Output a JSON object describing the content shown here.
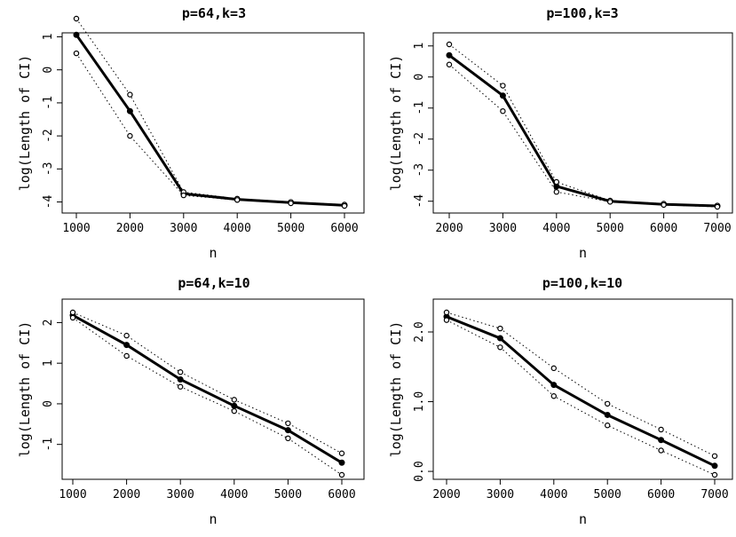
{
  "chart_data": [
    {
      "type": "line",
      "title": "p=64,k=3",
      "xlabel": "n",
      "ylabel": "log(Length of CI)",
      "x": [
        1000,
        2000,
        3000,
        4000,
        5000,
        6000
      ],
      "xticks": [
        "1000",
        "2000",
        "3000",
        "4000",
        "5000",
        "6000"
      ],
      "yticks": [
        "-4",
        "-3",
        "-2",
        "-1",
        "0",
        "1"
      ],
      "xlim": [
        1000,
        6000
      ],
      "ylim": [
        -4.12,
        1.55
      ],
      "series": [
        {
          "role": "mean",
          "values": [
            1.06,
            -1.25,
            -3.75,
            -3.92,
            -4.02,
            -4.1
          ]
        },
        {
          "role": "upper",
          "values": [
            1.55,
            -0.75,
            -3.7,
            -3.9,
            -4.0,
            -4.08
          ]
        },
        {
          "role": "lower",
          "values": [
            0.5,
            -2.0,
            -3.8,
            -3.94,
            -4.04,
            -4.12
          ]
        }
      ]
    },
    {
      "type": "line",
      "title": "p=100,k=3",
      "xlabel": "n",
      "ylabel": "log(Length of CI)",
      "x": [
        2000,
        3000,
        4000,
        5000,
        6000,
        7000
      ],
      "xticks": [
        "2000",
        "3000",
        "4000",
        "5000",
        "6000",
        "7000"
      ],
      "yticks": [
        "-4",
        "-3",
        "-2",
        "-1",
        "0",
        "1"
      ],
      "xlim": [
        2000,
        7000
      ],
      "ylim": [
        -4.18,
        1.05
      ],
      "series": [
        {
          "role": "mean",
          "values": [
            0.7,
            -0.6,
            -3.52,
            -4.0,
            -4.1,
            -4.15
          ]
        },
        {
          "role": "upper",
          "values": [
            1.05,
            -0.28,
            -3.38,
            -3.98,
            -4.08,
            -4.14
          ]
        },
        {
          "role": "lower",
          "values": [
            0.4,
            -1.1,
            -3.7,
            -4.02,
            -4.12,
            -4.18
          ]
        }
      ]
    },
    {
      "type": "line",
      "title": "p=64,k=10",
      "xlabel": "n",
      "ylabel": "log(Length of CI)",
      "x": [
        1000,
        2000,
        3000,
        4000,
        5000,
        6000
      ],
      "xticks": [
        "1000",
        "2000",
        "3000",
        "4000",
        "5000",
        "6000"
      ],
      "yticks": [
        "-1",
        "0",
        "1",
        "2"
      ],
      "xlim": [
        1000,
        6000
      ],
      "ylim": [
        -1.75,
        2.25
      ],
      "series": [
        {
          "role": "mean",
          "values": [
            2.18,
            1.45,
            0.6,
            -0.05,
            -0.65,
            -1.45
          ]
        },
        {
          "role": "upper",
          "values": [
            2.25,
            1.68,
            0.78,
            0.1,
            -0.48,
            -1.22
          ]
        },
        {
          "role": "lower",
          "values": [
            2.12,
            1.18,
            0.42,
            -0.18,
            -0.85,
            -1.75
          ]
        }
      ]
    },
    {
      "type": "line",
      "title": "p=100,k=10",
      "xlabel": "n",
      "ylabel": "log(Length of CI)",
      "x": [
        2000,
        3000,
        4000,
        5000,
        6000,
        7000
      ],
      "xticks": [
        "2000",
        "3000",
        "4000",
        "5000",
        "6000",
        "7000"
      ],
      "yticks": [
        "0.0",
        "1.0",
        "2.0"
      ],
      "xlim": [
        2000,
        7000
      ],
      "ylim": [
        -0.05,
        2.28
      ],
      "series": [
        {
          "role": "mean",
          "values": [
            2.22,
            1.91,
            1.24,
            0.81,
            0.45,
            0.08
          ]
        },
        {
          "role": "upper",
          "values": [
            2.28,
            2.05,
            1.48,
            0.97,
            0.6,
            0.22
          ]
        },
        {
          "role": "lower",
          "values": [
            2.17,
            1.78,
            1.08,
            0.66,
            0.3,
            -0.05
          ]
        }
      ]
    }
  ]
}
